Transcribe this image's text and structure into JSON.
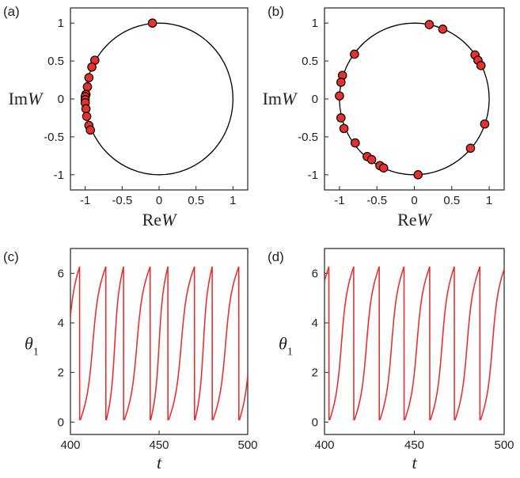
{
  "panels": [
    {
      "label": "(a)"
    },
    {
      "label": "(b)"
    },
    {
      "label": "(c)"
    },
    {
      "label": "(d)"
    }
  ],
  "colors": {
    "marker": "#e8312f",
    "curve": "#e8312f",
    "axis": "#222222"
  },
  "chart_data": [
    {
      "type": "scatter",
      "panel": "(a)",
      "xlabel": {
        "main": "Re",
        "var": "W"
      },
      "ylabel": {
        "main": "Im",
        "var": "W"
      },
      "xlim": [
        -1.2,
        1.2
      ],
      "ylim": [
        -1.2,
        1.2
      ],
      "xticks": [
        "-1",
        "-0.5",
        "0",
        "0.5",
        "1"
      ],
      "yticks": [
        "-1",
        "-0.5",
        "0",
        "0.5",
        "1"
      ],
      "reference": "unit circle",
      "points": [
        {
          "x": -0.09,
          "y": 1.0
        },
        {
          "x": -0.87,
          "y": 0.51
        },
        {
          "x": -0.91,
          "y": 0.42
        },
        {
          "x": -0.95,
          "y": 0.28
        },
        {
          "x": -0.97,
          "y": 0.16
        },
        {
          "x": -0.99,
          "y": 0.06
        },
        {
          "x": -1.0,
          "y": 0.03
        },
        {
          "x": -1.0,
          "y": -0.01
        },
        {
          "x": -1.0,
          "y": -0.05
        },
        {
          "x": -0.99,
          "y": -0.13
        },
        {
          "x": -0.98,
          "y": -0.23
        },
        {
          "x": -0.95,
          "y": -0.35
        },
        {
          "x": -0.93,
          "y": -0.41
        }
      ]
    },
    {
      "type": "scatter",
      "panel": "(b)",
      "xlabel": {
        "main": "Re",
        "var": "W"
      },
      "ylabel": {
        "main": "Im",
        "var": "W"
      },
      "xlim": [
        -1.2,
        1.2
      ],
      "ylim": [
        -1.2,
        1.2
      ],
      "xticks": [
        "-1",
        "-0.5",
        "0",
        "0.5",
        "1"
      ],
      "yticks": [
        "-1",
        "-0.5",
        "0",
        "0.5",
        "1"
      ],
      "reference": "unit circle",
      "points": [
        {
          "x": 0.2,
          "y": 0.98
        },
        {
          "x": 0.38,
          "y": 0.92
        },
        {
          "x": -0.8,
          "y": 0.59
        },
        {
          "x": 0.81,
          "y": 0.58
        },
        {
          "x": 0.85,
          "y": 0.51
        },
        {
          "x": 0.89,
          "y": 0.44
        },
        {
          "x": -0.96,
          "y": 0.31
        },
        {
          "x": -0.98,
          "y": 0.22
        },
        {
          "x": -1.0,
          "y": 0.04
        },
        {
          "x": -0.98,
          "y": -0.25
        },
        {
          "x": -0.94,
          "y": -0.39
        },
        {
          "x": 0.94,
          "y": -0.33
        },
        {
          "x": -0.79,
          "y": -0.58
        },
        {
          "x": 0.75,
          "y": -0.65
        },
        {
          "x": -0.63,
          "y": -0.76
        },
        {
          "x": -0.57,
          "y": -0.8
        },
        {
          "x": -0.46,
          "y": -0.88
        },
        {
          "x": -0.41,
          "y": -0.91
        },
        {
          "x": 0.05,
          "y": -1.0
        }
      ]
    },
    {
      "type": "line",
      "panel": "(c)",
      "xlabel": "t",
      "ylabel": {
        "main": "θ",
        "sub": "1"
      },
      "xlim": [
        400,
        500
      ],
      "ylim": [
        -0.5,
        7
      ],
      "xticks": [
        "400",
        "450",
        "500"
      ],
      "yticks": [
        "0",
        "2",
        "4",
        "6"
      ],
      "series": [
        {
          "spikes": [
            405.2,
            420.0,
            430.0,
            445.0,
            455.0,
            470.0,
            480.0,
            495.0
          ],
          "tail_start": 3.1,
          "tail_end": 3.15,
          "ymin": 0.1,
          "ymax": 6.25
        }
      ]
    },
    {
      "type": "line",
      "panel": "(d)",
      "xlabel": "t",
      "ylabel": {
        "main": "θ",
        "sub": "1"
      },
      "xlim": [
        400,
        500
      ],
      "ylim": [
        -0.5,
        7
      ],
      "xticks": [
        "400",
        "450",
        "500"
      ],
      "yticks": [
        "0",
        "2",
        "4",
        "6"
      ],
      "series": [
        {
          "spikes": [
            402.5,
            416.3,
            430.5,
            444.3,
            458.6,
            472.3,
            486.5
          ],
          "tail_start": 3.9,
          "tail_end": 4.9,
          "ymin": 0.1,
          "ymax": 6.25
        }
      ]
    }
  ]
}
